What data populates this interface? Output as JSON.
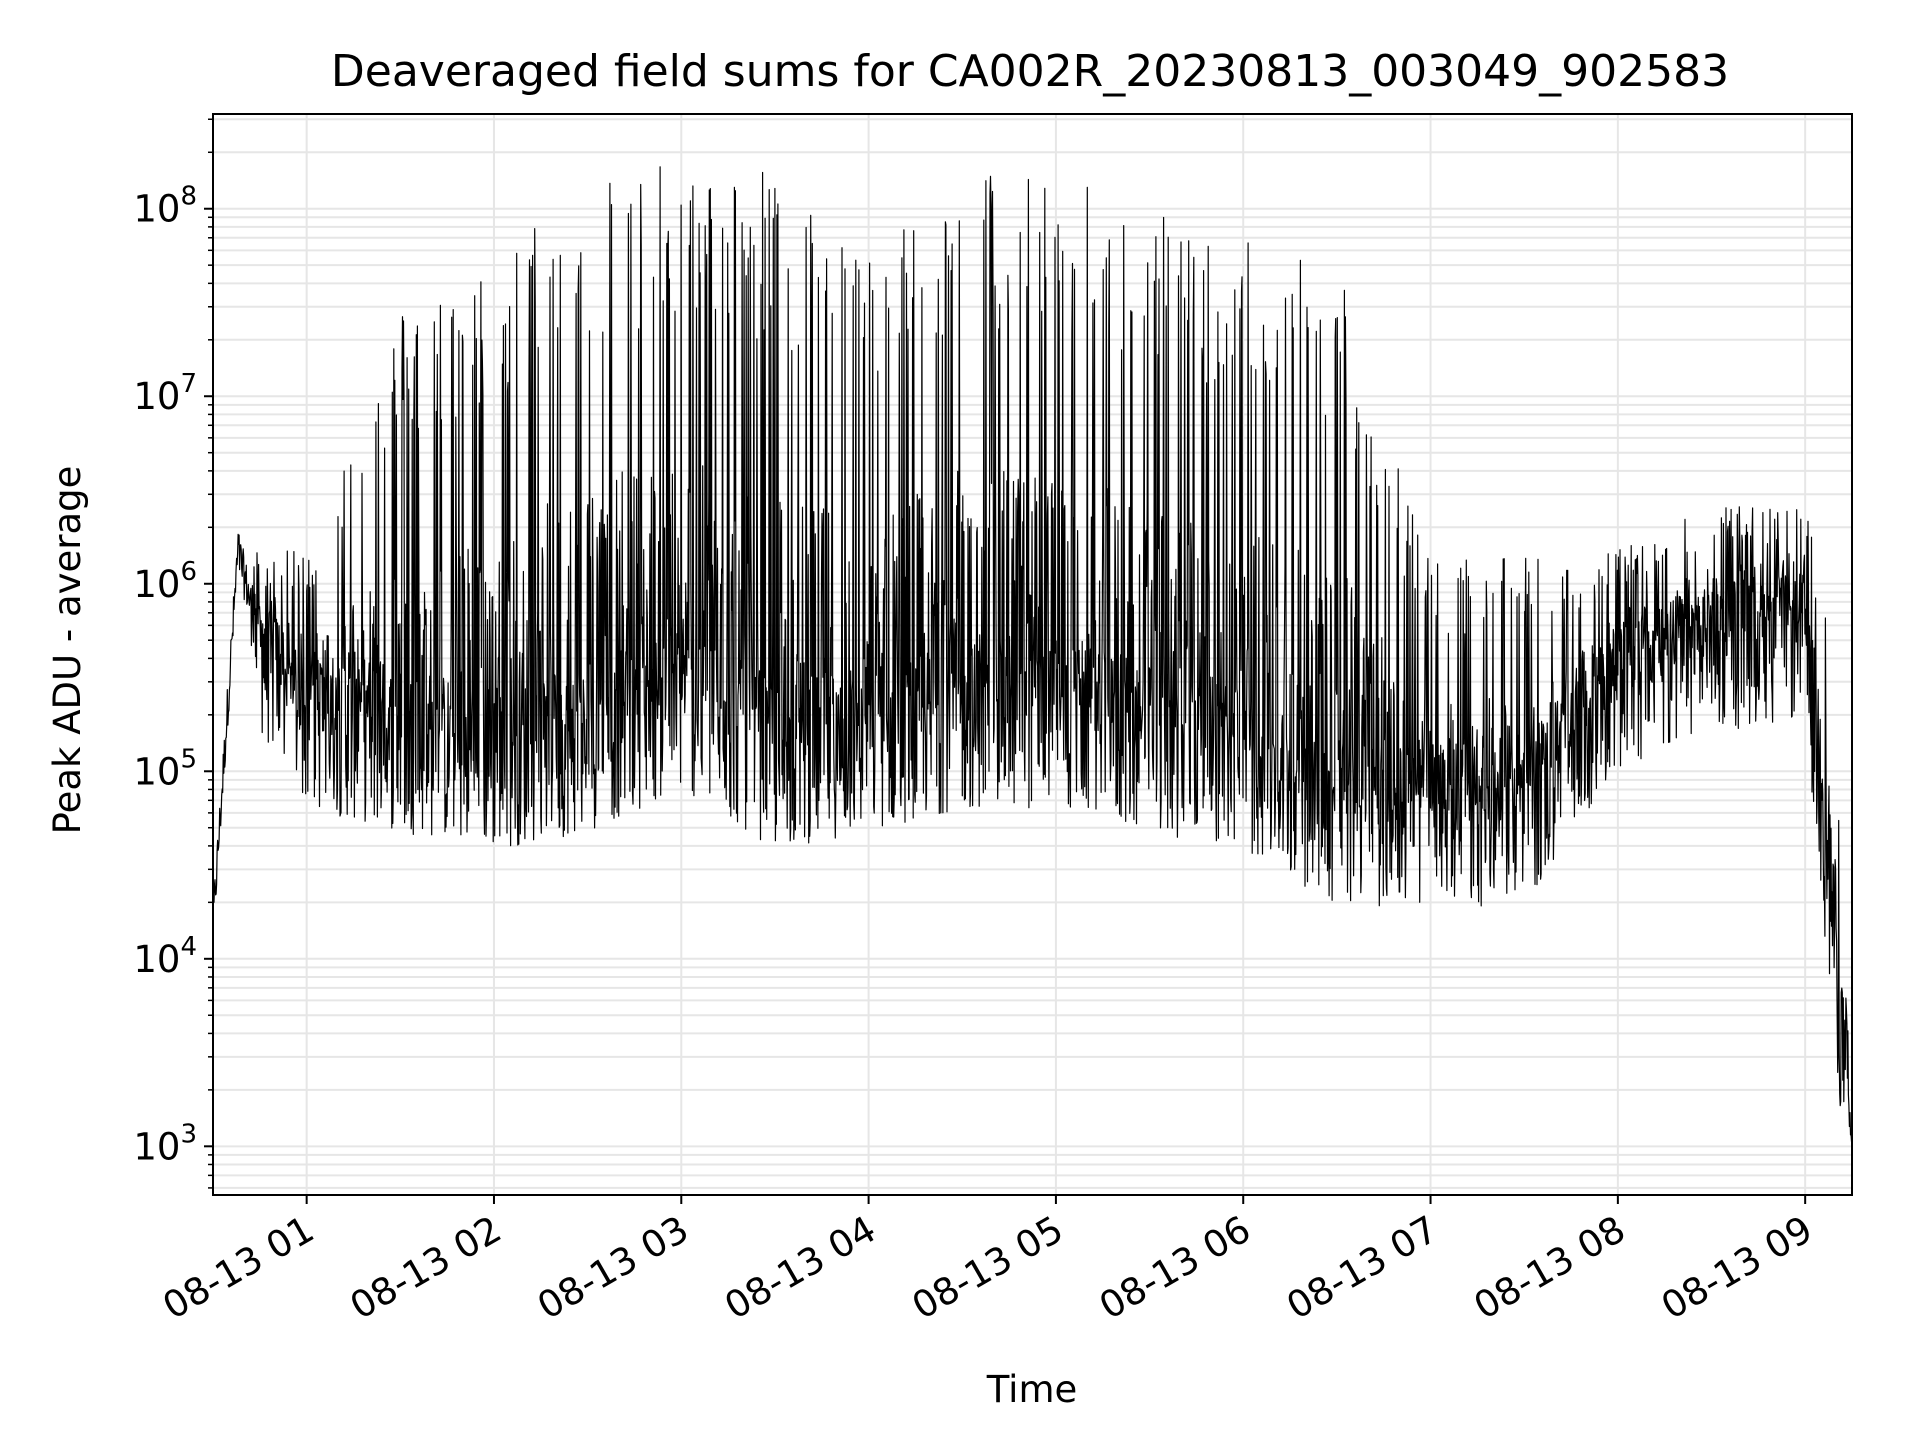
{
  "chart_data": {
    "type": "line",
    "title": "Deaveraged field sums for CA002R_20230813_003049_902583",
    "xlabel": "Time",
    "ylabel": "Peak ADU - average",
    "yscale": "log",
    "ylim": [
      550,
      320000000
    ],
    "xlim": [
      "08-13 00:30",
      "08-13 09:15"
    ],
    "grid": true,
    "line_color": "#000000",
    "grid_color": "#e6e6e6",
    "x_ticks": [
      {
        "label": "08-13 01",
        "hour": 1
      },
      {
        "label": "08-13 02",
        "hour": 2
      },
      {
        "label": "08-13 03",
        "hour": 3
      },
      {
        "label": "08-13 04",
        "hour": 4
      },
      {
        "label": "08-13 05",
        "hour": 5
      },
      {
        "label": "08-13 06",
        "hour": 6
      },
      {
        "label": "08-13 07",
        "hour": 7
      },
      {
        "label": "08-13 08",
        "hour": 8
      },
      {
        "label": "08-13 09",
        "hour": 9
      }
    ],
    "y_ticks": [
      {
        "base": "10",
        "exp": "3",
        "value": 1000
      },
      {
        "base": "10",
        "exp": "4",
        "value": 10000
      },
      {
        "base": "10",
        "exp": "5",
        "value": 100000
      },
      {
        "base": "10",
        "exp": "6",
        "value": 1000000
      },
      {
        "base": "10",
        "exp": "7",
        "value": 10000000
      },
      {
        "base": "10",
        "exp": "8",
        "value": 100000000
      }
    ],
    "envelope": {
      "time": [
        "08-13 00:30",
        "08-13 00:38",
        "08-13 00:45",
        "08-13 01:00",
        "08-13 01:30",
        "08-13 02:00",
        "08-13 02:30",
        "08-13 03:00",
        "08-13 03:30",
        "08-13 04:00",
        "08-13 04:30",
        "08-13 05:00",
        "08-13 05:30",
        "08-13 06:00",
        "08-13 06:30",
        "08-13 07:00",
        "08-13 07:30",
        "08-13 08:00",
        "08-13 08:30",
        "08-13 09:00",
        "08-13 09:08",
        "08-13 09:15"
      ],
      "baseline": [
        15000,
        1500000,
        500000,
        200000,
        150000,
        120000,
        150000,
        250000,
        120000,
        150000,
        200000,
        200000,
        150000,
        120000,
        60000,
        60000,
        60000,
        300000,
        500000,
        600000,
        20000,
        1000
      ],
      "peak_max": [
        20000,
        1600000,
        1500000,
        1500000,
        30000000,
        50000000,
        180000000,
        170000000,
        170000000,
        60000000,
        170000000,
        160000000,
        100000000,
        70000000,
        60000000,
        1300000,
        1400000,
        1500000,
        2700000,
        2500000,
        800000,
        1000
      ]
    }
  }
}
